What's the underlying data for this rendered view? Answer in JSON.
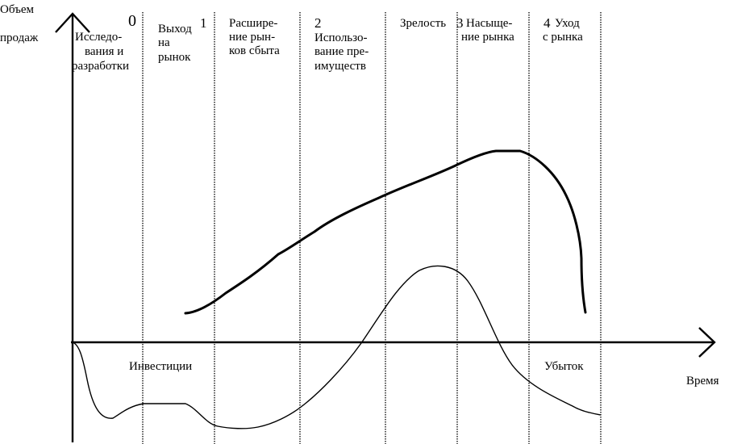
{
  "axes": {
    "y_label_line1": "Объем",
    "y_label_line2": "продаж",
    "x_label": "Время"
  },
  "stages": [
    {
      "number": "0",
      "lines": [
        "Исследо-",
        "вания и",
        "разработки"
      ]
    },
    {
      "number": "1",
      "lines": [
        "Выход",
        "на",
        "рынок"
      ]
    },
    {
      "number": "",
      "lines": [
        "Расшире-",
        "ние рын-",
        "ков сбыта"
      ]
    },
    {
      "number": "2",
      "lines": [
        "Использо-",
        "вание пре-",
        "имуществ"
      ]
    },
    {
      "number": "",
      "lines": [
        "Зрелость"
      ]
    },
    {
      "number": "3",
      "lines": [
        "Насыще-",
        "ние рынка"
      ]
    },
    {
      "number": "4",
      "lines": [
        "Уход",
        "с рынка"
      ]
    }
  ],
  "annotations": {
    "investment": "Инвестиции",
    "loss": "Убыток"
  },
  "curves": {
    "sales_volume": "sales-volume",
    "profit": "profit-loss"
  }
}
